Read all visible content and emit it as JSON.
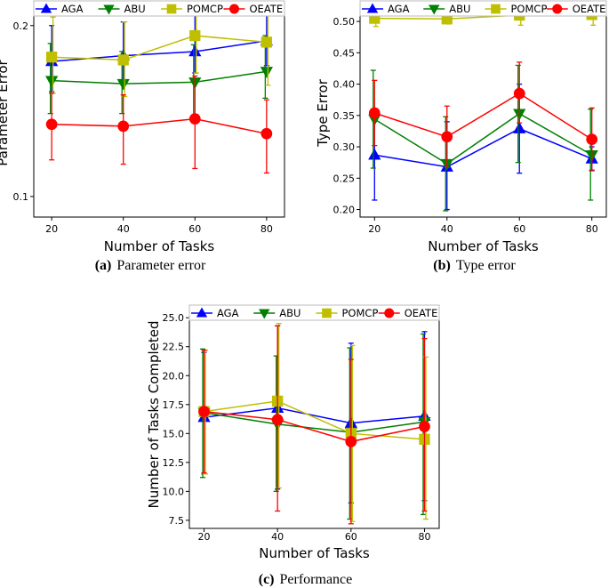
{
  "chart_data": [
    {
      "type": "line",
      "panel": "a",
      "caption_letter": "(a)",
      "caption_text": "Parameter error",
      "xlabel": "Number of Tasks",
      "ylabel": "Parameter Error",
      "x": [
        20,
        40,
        60,
        80
      ],
      "x_ticks": [
        "20",
        "40",
        "60",
        "80"
      ],
      "xlim": [
        15,
        85
      ],
      "yscale": "log",
      "ylim": [
        0.092,
        0.214
      ],
      "y_ticks": [
        {
          "value": 0.1,
          "label": "0.1"
        },
        {
          "value": 0.2,
          "label": "0.2"
        }
      ],
      "series": [
        {
          "name": "AGA",
          "values": [
            0.173,
            0.177,
            0.18,
            0.188
          ],
          "err_low": [
            0.153,
            0.16,
            0.165,
            0.17
          ],
          "err_high": [
            0.2,
            0.203,
            0.215,
            0.215
          ]
        },
        {
          "name": "ABU",
          "values": [
            0.16,
            0.158,
            0.159,
            0.166
          ],
          "err_low": [
            0.14,
            0.14,
            0.138,
            0.149
          ],
          "err_high": [
            0.186,
            0.18,
            0.185,
            0.192
          ]
        },
        {
          "name": "POMCP",
          "values": [
            0.176,
            0.174,
            0.192,
            0.187
          ],
          "err_low": [
            0.152,
            0.15,
            0.165,
            0.157
          ],
          "err_high": [
            0.207,
            0.203,
            0.22,
            0.222
          ]
        },
        {
          "name": "OEATE",
          "values": [
            0.134,
            0.133,
            0.137,
            0.129
          ],
          "err_low": [
            0.116,
            0.114,
            0.112,
            0.11
          ],
          "err_high": [
            0.152,
            0.151,
            0.163,
            0.148
          ]
        }
      ]
    },
    {
      "type": "line",
      "panel": "b",
      "caption_letter": "(b)",
      "caption_text": "Type error",
      "xlabel": "Number of Tasks",
      "ylabel": "Type Error",
      "x": [
        20,
        40,
        60,
        80
      ],
      "x_ticks": [
        "20",
        "40",
        "60",
        "80"
      ],
      "xlim": [
        16,
        84
      ],
      "ylim": [
        0.188,
        0.52
      ],
      "y_ticks": [
        {
          "value": 0.2,
          "label": "0.20"
        },
        {
          "value": 0.25,
          "label": "0.25"
        },
        {
          "value": 0.3,
          "label": "0.30"
        },
        {
          "value": 0.35,
          "label": "0.35"
        },
        {
          "value": 0.4,
          "label": "0.40"
        },
        {
          "value": 0.45,
          "label": "0.45"
        },
        {
          "value": 0.5,
          "label": "0.50"
        }
      ],
      "series": [
        {
          "name": "AGA",
          "values": [
            0.287,
            0.268,
            0.329,
            0.281
          ],
          "err_low": [
            0.215,
            0.2,
            0.258,
            0.262
          ],
          "err_high": [
            0.36,
            0.34,
            0.4,
            0.3
          ]
        },
        {
          "name": "ABU",
          "values": [
            0.344,
            0.273,
            0.353,
            0.287
          ],
          "err_low": [
            0.266,
            0.198,
            0.275,
            0.215
          ],
          "err_high": [
            0.422,
            0.348,
            0.43,
            0.36
          ]
        },
        {
          "name": "POMCP",
          "values": [
            0.505,
            0.504,
            0.51,
            0.511
          ],
          "err_low": [
            0.492,
            0.496,
            0.494,
            0.494
          ],
          "err_high": [
            0.518,
            0.512,
            0.525,
            0.526
          ]
        },
        {
          "name": "OEATE",
          "values": [
            0.354,
            0.316,
            0.385,
            0.312
          ],
          "err_low": [
            0.302,
            0.267,
            0.338,
            0.263
          ],
          "err_high": [
            0.406,
            0.365,
            0.435,
            0.362
          ]
        }
      ]
    },
    {
      "type": "line",
      "panel": "c",
      "caption_letter": "(c)",
      "caption_text": "Performance",
      "xlabel": "Number of Tasks",
      "ylabel": "Number of Tasks Completed",
      "x": [
        20,
        40,
        60,
        80
      ],
      "x_ticks": [
        "20",
        "40",
        "60",
        "80"
      ],
      "xlim": [
        16,
        84
      ],
      "ylim": [
        6.8,
        25.4
      ],
      "y_ticks": [
        {
          "value": 7.5,
          "label": "7.5"
        },
        {
          "value": 10.0,
          "label": "10.0"
        },
        {
          "value": 12.5,
          "label": "12.5"
        },
        {
          "value": 15.0,
          "label": "15.0"
        },
        {
          "value": 17.5,
          "label": "17.5"
        },
        {
          "value": 20.0,
          "label": "20.0"
        },
        {
          "value": 22.5,
          "label": "22.5"
        },
        {
          "value": 25.0,
          "label": "25.0"
        }
      ],
      "series": [
        {
          "name": "AGA",
          "values": [
            16.4,
            17.2,
            15.9,
            16.5
          ],
          "err_low": [
            11.5,
            10.2,
            9.0,
            9.2
          ],
          "err_high": [
            22.0,
            24.3,
            22.8,
            23.8
          ]
        },
        {
          "name": "ABU",
          "values": [
            16.8,
            15.8,
            15.1,
            16.0
          ],
          "err_low": [
            11.2,
            10.0,
            7.6,
            8.0
          ],
          "err_high": [
            22.3,
            21.7,
            22.4,
            23.6
          ]
        },
        {
          "name": "POMCP",
          "values": [
            16.9,
            17.8,
            15.0,
            14.5
          ],
          "err_low": [
            11.5,
            10.3,
            7.4,
            7.6
          ],
          "err_high": [
            22.2,
            24.5,
            22.6,
            21.6
          ]
        },
        {
          "name": "OEATE",
          "values": [
            16.9,
            16.2,
            14.3,
            15.6
          ],
          "err_low": [
            11.6,
            8.3,
            7.2,
            8.3
          ],
          "err_high": [
            22.2,
            24.3,
            21.4,
            23.2
          ]
        }
      ]
    }
  ],
  "legend": [
    {
      "name": "AGA",
      "color": "#0000ff",
      "marker": "triangle-up"
    },
    {
      "name": "ABU",
      "color": "#007f00",
      "marker": "triangle-down"
    },
    {
      "name": "POMCP",
      "color": "#bfbf00",
      "marker": "square"
    },
    {
      "name": "OEATE",
      "color": "#ff0000",
      "marker": "circle"
    }
  ]
}
